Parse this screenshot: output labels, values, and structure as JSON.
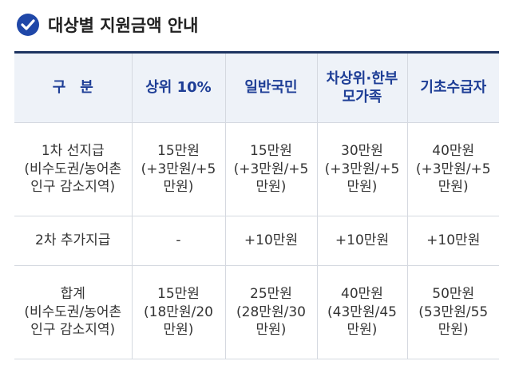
{
  "header": {
    "title": "대상별 지원금액 안내"
  },
  "table": {
    "columns": [
      [
        "구　분"
      ],
      [
        "상위 10%"
      ],
      [
        "일반국민"
      ],
      [
        "차상위·한부",
        "모가족"
      ],
      [
        "기초수급자"
      ]
    ],
    "rows": [
      [
        [
          "1차 선지급",
          "(비수도권/농어촌",
          "인구 감소지역)"
        ],
        [
          "15만원",
          "(+3만원/+5",
          "만원)"
        ],
        [
          "15만원",
          "(+3만원/+5",
          "만원)"
        ],
        [
          "30만원",
          "(+3만원/+5",
          "만원)"
        ],
        [
          "40만원",
          "(+3만원/+5",
          "만원)"
        ]
      ],
      [
        [
          "2차 추가지급"
        ],
        [
          "-"
        ],
        [
          "+10만원"
        ],
        [
          "+10만원"
        ],
        [
          "+10만원"
        ]
      ],
      [
        [
          "합계",
          "(비수도권/농어촌",
          "인구 감소지역)"
        ],
        [
          "15만원",
          "(18만원/20",
          "만원)"
        ],
        [
          "25만원",
          "(28만원/30",
          "만원)"
        ],
        [
          "40만원",
          "(43만원/45",
          "만원)"
        ],
        [
          "50만원",
          "(53만원/55",
          "만원)"
        ]
      ]
    ]
  }
}
